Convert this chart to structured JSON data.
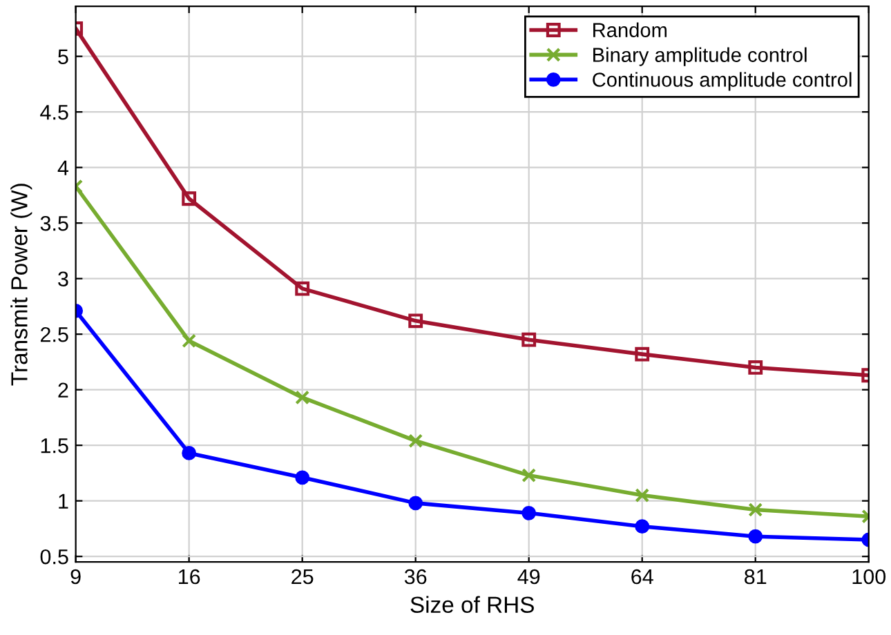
{
  "chart_data": {
    "type": "line",
    "xlabel": "Size of RHS",
    "ylabel": "Transmit Power (W)",
    "categories": [
      "9",
      "16",
      "25",
      "36",
      "49",
      "64",
      "81",
      "100"
    ],
    "series": [
      {
        "name": "Random",
        "color": "#a2142f",
        "marker": "square",
        "values": [
          5.25,
          3.72,
          2.91,
          2.62,
          2.45,
          2.32,
          2.2,
          2.13
        ]
      },
      {
        "name": "Binary amplitude control",
        "color": "#77ac30",
        "marker": "cross",
        "values": [
          3.83,
          2.44,
          1.93,
          1.54,
          1.23,
          1.05,
          0.92,
          0.86
        ]
      },
      {
        "name": "Continuous amplitude control",
        "color": "#0000ff",
        "marker": "circle",
        "values": [
          2.71,
          1.43,
          1.21,
          0.98,
          0.89,
          0.77,
          0.68,
          0.65
        ]
      }
    ],
    "ylim": [
      0.45,
      5.45
    ],
    "yticks": [
      0.5,
      1,
      1.5,
      2,
      2.5,
      3,
      3.5,
      4,
      4.5,
      5
    ],
    "grid": true,
    "legend": "top right",
    "line_style": "solid"
  }
}
